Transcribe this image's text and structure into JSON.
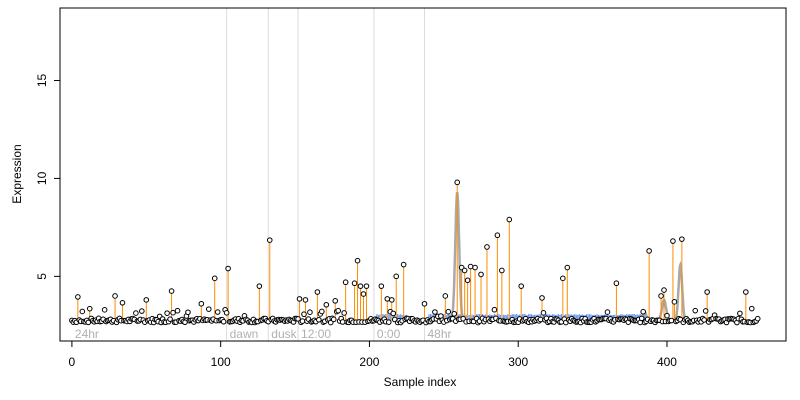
{
  "chart_data": {
    "type": "scatter",
    "title": "",
    "xlabel": "Sample index",
    "ylabel": "Expression",
    "xlim": [
      -8,
      480
    ],
    "ylim": [
      1.7,
      18.7
    ],
    "x_ticks": [
      0,
      100,
      200,
      300,
      400
    ],
    "y_ticks": [
      5,
      10,
      15
    ],
    "grid": false,
    "legend": "none",
    "colors": {
      "points": "#000000",
      "spikes": "#ff8c00",
      "baseline_bars": "#6495ed",
      "smooth_peaks": "#a9a9a9",
      "phase_lines": "#dcdcdc",
      "phase_text": "#b0b0b0"
    },
    "phase_markers": [
      {
        "x": 0,
        "label": "24hr",
        "line": false
      },
      {
        "x": 104,
        "label": "dawn",
        "line": true
      },
      {
        "x": 132,
        "label": "dusk",
        "line": true
      },
      {
        "x": 152,
        "label": "12:00",
        "line": true
      },
      {
        "x": 203,
        "label": "0:00",
        "line": true
      },
      {
        "x": 237,
        "label": "48hr",
        "line": true
      }
    ],
    "baseline": 2.75,
    "spike_points": [
      {
        "x": 4,
        "y": 3.95
      },
      {
        "x": 12,
        "y": 3.35
      },
      {
        "x": 29,
        "y": 4.0
      },
      {
        "x": 34,
        "y": 3.65
      },
      {
        "x": 50,
        "y": 3.8
      },
      {
        "x": 67,
        "y": 4.25
      },
      {
        "x": 87,
        "y": 3.6
      },
      {
        "x": 96,
        "y": 4.9
      },
      {
        "x": 105,
        "y": 5.4
      },
      {
        "x": 126,
        "y": 4.5
      },
      {
        "x": 133,
        "y": 6.85
      },
      {
        "x": 153,
        "y": 3.85
      },
      {
        "x": 157,
        "y": 3.8
      },
      {
        "x": 165,
        "y": 4.2
      },
      {
        "x": 171,
        "y": 3.55
      },
      {
        "x": 177,
        "y": 3.75
      },
      {
        "x": 184,
        "y": 4.7
      },
      {
        "x": 190,
        "y": 4.65
      },
      {
        "x": 192,
        "y": 5.8
      },
      {
        "x": 194,
        "y": 4.5
      },
      {
        "x": 196,
        "y": 4.1
      },
      {
        "x": 198,
        "y": 4.5
      },
      {
        "x": 208,
        "y": 4.5
      },
      {
        "x": 212,
        "y": 3.85
      },
      {
        "x": 215,
        "y": 3.8
      },
      {
        "x": 218,
        "y": 5.0
      },
      {
        "x": 223,
        "y": 5.6
      },
      {
        "x": 237,
        "y": 3.6
      },
      {
        "x": 251,
        "y": 4.0
      },
      {
        "x": 259,
        "y": 9.8
      },
      {
        "x": 262,
        "y": 5.45
      },
      {
        "x": 264,
        "y": 5.3
      },
      {
        "x": 266,
        "y": 4.8
      },
      {
        "x": 268,
        "y": 5.5
      },
      {
        "x": 271,
        "y": 5.45
      },
      {
        "x": 275,
        "y": 5.1
      },
      {
        "x": 279,
        "y": 6.5
      },
      {
        "x": 286,
        "y": 7.1
      },
      {
        "x": 289,
        "y": 5.3
      },
      {
        "x": 294,
        "y": 7.9
      },
      {
        "x": 302,
        "y": 4.5
      },
      {
        "x": 316,
        "y": 3.9
      },
      {
        "x": 330,
        "y": 4.9
      },
      {
        "x": 333,
        "y": 5.45
      },
      {
        "x": 366,
        "y": 4.65
      },
      {
        "x": 388,
        "y": 6.3
      },
      {
        "x": 396,
        "y": 4.0
      },
      {
        "x": 398,
        "y": 4.3
      },
      {
        "x": 404,
        "y": 6.8
      },
      {
        "x": 405,
        "y": 3.7
      },
      {
        "x": 410,
        "y": 6.9
      },
      {
        "x": 427,
        "y": 4.2
      },
      {
        "x": 453,
        "y": 4.2
      }
    ],
    "smooth_peaks": [
      {
        "center": 259,
        "height": 9.3,
        "width": 1.3
      },
      {
        "center": 385,
        "height": 3.2,
        "width": 1.0
      },
      {
        "center": 398,
        "height": 3.8,
        "width": 1.4
      },
      {
        "center": 409,
        "height": 5.6,
        "width": 1.2
      }
    ],
    "blue_bar_ranges": [
      [
        205,
        225
      ],
      [
        240,
        385
      ]
    ],
    "n_samples": 462
  }
}
